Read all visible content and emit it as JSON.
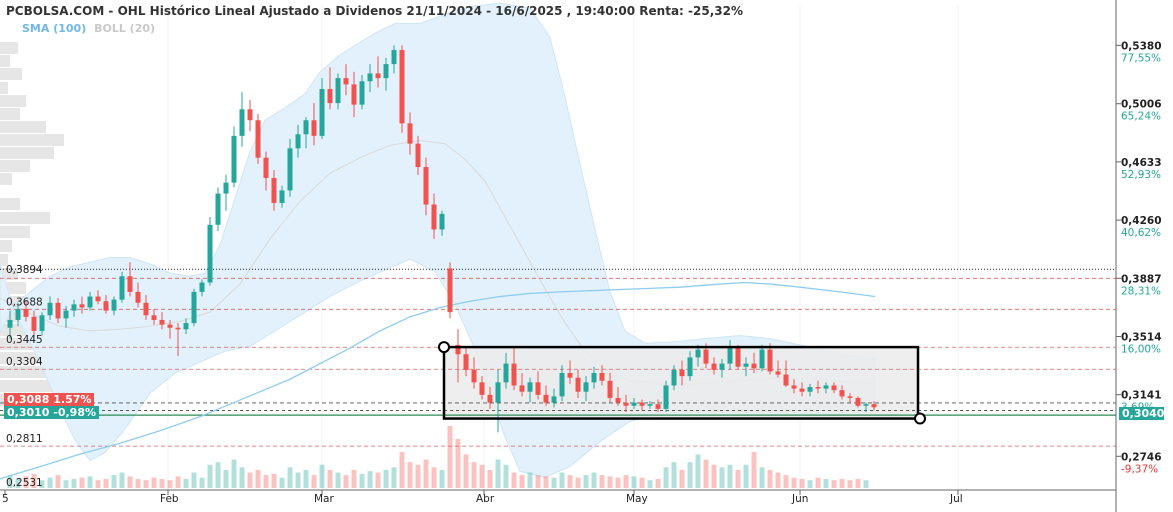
{
  "header": {
    "title": "PCBOLSA.COM - OHL Histórico Lineal Ajustado a Dividenos 21/11/2024 - 16/6/2025 , 19:40:00 Renta: -25,32%",
    "legend_sma": "SMA (100)",
    "legend_boll": "BOLL (20)"
  },
  "colors": {
    "up": "#26a69a",
    "down": "#ef5350",
    "sma": "#8fcdf0",
    "bands": "#e2f1fb",
    "box_fill": "#ebebeb"
  },
  "price_tags": {
    "red": "0,3088  1.57%",
    "green": "0,3010  -0,98%"
  },
  "right_tag": "0,3040",
  "chart_data": {
    "type": "candlestick",
    "x_tick_labels": [
      "5",
      "Feb",
      "Mar",
      "Abr",
      "May",
      "Jun",
      "Jul"
    ],
    "right_axis": [
      {
        "price": "0,5380",
        "pct": "77,55%"
      },
      {
        "price": "0,5006",
        "pct": "65,24%"
      },
      {
        "price": "0,4633",
        "pct": "52,93%"
      },
      {
        "price": "0,4260",
        "pct": "40,62%"
      },
      {
        "price": "0,3887",
        "pct": "28,31%"
      },
      {
        "price": "0,3514",
        "pct": "16,00%"
      },
      {
        "price": "0,3141",
        "pct": "3,69%"
      },
      {
        "price": "0,2746",
        "pct": "-9,37%"
      }
    ],
    "left_level_labels": [
      "0,3894",
      "0,3688",
      "0,3445",
      "0,3304",
      "0,2811",
      "0,2531"
    ],
    "ylim": [
      0.253,
      0.544
    ],
    "black_dotted_level": 0.3945,
    "red_dashed_levels": [
      0.3887,
      0.3688,
      0.3445,
      0.3304,
      0.2811
    ],
    "candles": [
      [
        0.357,
        0.368,
        0.35,
        0.362
      ],
      [
        0.362,
        0.373,
        0.358,
        0.369
      ],
      [
        0.369,
        0.374,
        0.361,
        0.364
      ],
      [
        0.364,
        0.368,
        0.351,
        0.355
      ],
      [
        0.355,
        0.367,
        0.352,
        0.365
      ],
      [
        0.365,
        0.377,
        0.362,
        0.373
      ],
      [
        0.373,
        0.376,
        0.36,
        0.363
      ],
      [
        0.363,
        0.371,
        0.357,
        0.368
      ],
      [
        0.368,
        0.375,
        0.364,
        0.372
      ],
      [
        0.372,
        0.377,
        0.366,
        0.37
      ],
      [
        0.37,
        0.38,
        0.368,
        0.377
      ],
      [
        0.377,
        0.381,
        0.372,
        0.374
      ],
      [
        0.374,
        0.378,
        0.366,
        0.368
      ],
      [
        0.368,
        0.377,
        0.365,
        0.375
      ],
      [
        0.375,
        0.393,
        0.373,
        0.39
      ],
      [
        0.39,
        0.399,
        0.377,
        0.38
      ],
      [
        0.38,
        0.386,
        0.37,
        0.373
      ],
      [
        0.373,
        0.378,
        0.362,
        0.365
      ],
      [
        0.365,
        0.369,
        0.359,
        0.362
      ],
      [
        0.362,
        0.367,
        0.356,
        0.359
      ],
      [
        0.359,
        0.362,
        0.35,
        0.357
      ],
      [
        0.357,
        0.36,
        0.339,
        0.356
      ],
      [
        0.356,
        0.363,
        0.353,
        0.36
      ],
      [
        0.36,
        0.382,
        0.358,
        0.38
      ],
      [
        0.38,
        0.388,
        0.377,
        0.386
      ],
      [
        0.386,
        0.428,
        0.384,
        0.423
      ],
      [
        0.423,
        0.447,
        0.419,
        0.443
      ],
      [
        0.443,
        0.455,
        0.432,
        0.45
      ],
      [
        0.45,
        0.486,
        0.447,
        0.48
      ],
      [
        0.48,
        0.508,
        0.473,
        0.497
      ],
      [
        0.497,
        0.503,
        0.483,
        0.49
      ],
      [
        0.49,
        0.494,
        0.462,
        0.466
      ],
      [
        0.466,
        0.47,
        0.445,
        0.453
      ],
      [
        0.453,
        0.458,
        0.432,
        0.437
      ],
      [
        0.437,
        0.448,
        0.434,
        0.445
      ],
      [
        0.445,
        0.478,
        0.441,
        0.472
      ],
      [
        0.472,
        0.487,
        0.466,
        0.481
      ],
      [
        0.481,
        0.492,
        0.472,
        0.49
      ],
      [
        0.49,
        0.501,
        0.474,
        0.48
      ],
      [
        0.48,
        0.517,
        0.478,
        0.51
      ],
      [
        0.51,
        0.524,
        0.497,
        0.501
      ],
      [
        0.501,
        0.52,
        0.497,
        0.517
      ],
      [
        0.517,
        0.526,
        0.506,
        0.513
      ],
      [
        0.513,
        0.521,
        0.492,
        0.5
      ],
      [
        0.5,
        0.519,
        0.497,
        0.515
      ],
      [
        0.515,
        0.526,
        0.508,
        0.52
      ],
      [
        0.52,
        0.531,
        0.511,
        0.517
      ],
      [
        0.517,
        0.53,
        0.509,
        0.526
      ],
      [
        0.526,
        0.538,
        0.52,
        0.535
      ],
      [
        0.535,
        0.538,
        0.482,
        0.488
      ],
      [
        0.488,
        0.495,
        0.468,
        0.475
      ],
      [
        0.475,
        0.48,
        0.455,
        0.46
      ],
      [
        0.46,
        0.466,
        0.429,
        0.436
      ],
      [
        0.436,
        0.443,
        0.414,
        0.42
      ],
      [
        0.42,
        0.432,
        0.416,
        0.43
      ],
      [
        0.395,
        0.399,
        0.363,
        0.367
      ],
      [
        0.346,
        0.356,
        0.322,
        0.34
      ],
      [
        0.34,
        0.345,
        0.326,
        0.33
      ],
      [
        0.33,
        0.338,
        0.318,
        0.322
      ],
      [
        0.322,
        0.326,
        0.311,
        0.314
      ],
      [
        0.314,
        0.319,
        0.305,
        0.309
      ],
      [
        0.309,
        0.33,
        0.29,
        0.322
      ],
      [
        0.322,
        0.341,
        0.318,
        0.334
      ],
      [
        0.334,
        0.345,
        0.317,
        0.32
      ],
      [
        0.32,
        0.328,
        0.313,
        0.316
      ],
      [
        0.316,
        0.325,
        0.309,
        0.322
      ],
      [
        0.322,
        0.329,
        0.311,
        0.314
      ],
      [
        0.314,
        0.32,
        0.307,
        0.309
      ],
      [
        0.309,
        0.318,
        0.306,
        0.313
      ],
      [
        0.313,
        0.333,
        0.31,
        0.328
      ],
      [
        0.328,
        0.336,
        0.321,
        0.325
      ],
      [
        0.325,
        0.33,
        0.312,
        0.316
      ],
      [
        0.316,
        0.326,
        0.31,
        0.322
      ],
      [
        0.322,
        0.332,
        0.318,
        0.328
      ],
      [
        0.328,
        0.333,
        0.32,
        0.323
      ],
      [
        0.323,
        0.328,
        0.309,
        0.312
      ],
      [
        0.312,
        0.319,
        0.307,
        0.309
      ],
      [
        0.309,
        0.314,
        0.303,
        0.307
      ],
      [
        0.307,
        0.312,
        0.305,
        0.309
      ],
      [
        0.309,
        0.311,
        0.304,
        0.307
      ],
      [
        0.307,
        0.31,
        0.305,
        0.308
      ],
      [
        0.308,
        0.311,
        0.303,
        0.305
      ],
      [
        0.305,
        0.323,
        0.303,
        0.32
      ],
      [
        0.32,
        0.333,
        0.317,
        0.33
      ],
      [
        0.33,
        0.336,
        0.32,
        0.326
      ],
      [
        0.326,
        0.342,
        0.323,
        0.338
      ],
      [
        0.338,
        0.346,
        0.332,
        0.343
      ],
      [
        0.343,
        0.347,
        0.331,
        0.334
      ],
      [
        0.334,
        0.338,
        0.327,
        0.33
      ],
      [
        0.33,
        0.337,
        0.325,
        0.334
      ],
      [
        0.334,
        0.349,
        0.33,
        0.345
      ],
      [
        0.345,
        0.346,
        0.33,
        0.332
      ],
      [
        0.332,
        0.338,
        0.326,
        0.334
      ],
      [
        0.334,
        0.341,
        0.328,
        0.331
      ],
      [
        0.331,
        0.346,
        0.329,
        0.343
      ],
      [
        0.343,
        0.347,
        0.327,
        0.329
      ],
      [
        0.329,
        0.336,
        0.325,
        0.327
      ],
      [
        0.327,
        0.336,
        0.319,
        0.32
      ],
      [
        0.32,
        0.324,
        0.315,
        0.318
      ],
      [
        0.318,
        0.322,
        0.313,
        0.316
      ],
      [
        0.316,
        0.321,
        0.313,
        0.319
      ],
      [
        0.319,
        0.323,
        0.315,
        0.318
      ],
      [
        0.318,
        0.322,
        0.315,
        0.32
      ],
      [
        0.32,
        0.322,
        0.315,
        0.317
      ],
      [
        0.317,
        0.32,
        0.311,
        0.313
      ],
      [
        0.313,
        0.315,
        0.309,
        0.312
      ],
      [
        0.312,
        0.313,
        0.306,
        0.307
      ],
      [
        0.307,
        0.309,
        0.303,
        0.308
      ],
      [
        0.308,
        0.31,
        0.304,
        0.306
      ]
    ],
    "volumes": [
      0.5,
      0.35,
      0.45,
      0.55,
      0.3,
      0.4,
      0.5,
      0.3,
      0.35,
      0.4,
      0.45,
      0.3,
      0.35,
      0.5,
      0.6,
      0.45,
      0.35,
      0.3,
      0.4,
      0.35,
      0.3,
      0.45,
      0.35,
      0.6,
      0.4,
      0.9,
      1.0,
      0.7,
      1.1,
      0.8,
      0.6,
      0.7,
      0.5,
      0.55,
      0.4,
      0.8,
      0.6,
      0.7,
      0.5,
      0.9,
      0.7,
      0.6,
      0.5,
      0.7,
      0.55,
      0.65,
      0.6,
      0.7,
      0.8,
      1.4,
      1.0,
      0.9,
      1.1,
      0.8,
      0.7,
      2.4,
      1.9,
      1.3,
      1.0,
      0.9,
      0.7,
      1.1,
      0.9,
      0.6,
      0.5,
      0.6,
      0.5,
      0.45,
      0.4,
      0.6,
      0.5,
      0.4,
      0.5,
      0.6,
      0.5,
      0.45,
      0.4,
      0.5,
      0.45,
      0.4,
      0.3,
      0.35,
      0.8,
      1.0,
      0.7,
      1.0,
      1.3,
      1.1,
      0.9,
      0.8,
      0.9,
      0.7,
      0.9,
      1.4,
      0.8,
      0.7,
      0.6,
      0.5,
      0.4,
      0.35,
      0.3,
      0.4,
      0.35,
      0.3,
      0.35,
      0.3,
      0.35,
      0.3
    ],
    "sma100": [
      [
        -1,
        0.26
      ],
      [
        40,
        0.268
      ],
      [
        80,
        0.276
      ],
      [
        120,
        0.283
      ],
      [
        160,
        0.291
      ],
      [
        200,
        0.3
      ],
      [
        230,
        0.308
      ],
      [
        260,
        0.316
      ],
      [
        290,
        0.324
      ],
      [
        320,
        0.334
      ],
      [
        350,
        0.344
      ],
      [
        380,
        0.355
      ],
      [
        410,
        0.364
      ],
      [
        440,
        0.37
      ],
      [
        470,
        0.374
      ],
      [
        500,
        0.377
      ],
      [
        530,
        0.379
      ],
      [
        560,
        0.38
      ],
      [
        600,
        0.381
      ],
      [
        640,
        0.382
      ],
      [
        680,
        0.383
      ],
      [
        720,
        0.385
      ],
      [
        745,
        0.386
      ],
      [
        770,
        0.385
      ],
      [
        800,
        0.383
      ],
      [
        840,
        0.38
      ],
      [
        875,
        0.377
      ]
    ],
    "boll_upper": [
      [
        0,
        0.354
      ],
      [
        15,
        0.372
      ],
      [
        30,
        0.38
      ],
      [
        50,
        0.39
      ],
      [
        70,
        0.396
      ],
      [
        90,
        0.399
      ],
      [
        110,
        0.402
      ],
      [
        130,
        0.402
      ],
      [
        150,
        0.398
      ],
      [
        170,
        0.392
      ],
      [
        190,
        0.39
      ],
      [
        205,
        0.392
      ],
      [
        220,
        0.41
      ],
      [
        235,
        0.44
      ],
      [
        250,
        0.47
      ],
      [
        265,
        0.49
      ],
      [
        285,
        0.498
      ],
      [
        305,
        0.507
      ],
      [
        320,
        0.521
      ],
      [
        340,
        0.532
      ],
      [
        360,
        0.54
      ],
      [
        375,
        0.546
      ],
      [
        395,
        0.552
      ],
      [
        420,
        0.552
      ],
      [
        445,
        0.558
      ],
      [
        470,
        0.563
      ],
      [
        500,
        0.565
      ],
      [
        530,
        0.562
      ],
      [
        550,
        0.543
      ],
      [
        565,
        0.505
      ],
      [
        580,
        0.462
      ],
      [
        595,
        0.42
      ],
      [
        610,
        0.38
      ],
      [
        625,
        0.355
      ],
      [
        645,
        0.347
      ],
      [
        675,
        0.348
      ],
      [
        705,
        0.35
      ],
      [
        740,
        0.352
      ],
      [
        770,
        0.35
      ],
      [
        800,
        0.346
      ],
      [
        830,
        0.342
      ],
      [
        860,
        0.338
      ],
      [
        875,
        0.337
      ]
    ],
    "boll_lower": [
      [
        0,
        0.398
      ],
      [
        15,
        0.366
      ],
      [
        30,
        0.348
      ],
      [
        45,
        0.327
      ],
      [
        60,
        0.305
      ],
      [
        75,
        0.285
      ],
      [
        90,
        0.272
      ],
      [
        105,
        0.277
      ],
      [
        125,
        0.292
      ],
      [
        150,
        0.315
      ],
      [
        175,
        0.328
      ],
      [
        200,
        0.335
      ],
      [
        225,
        0.342
      ],
      [
        250,
        0.345
      ],
      [
        275,
        0.355
      ],
      [
        300,
        0.365
      ],
      [
        330,
        0.377
      ],
      [
        360,
        0.387
      ],
      [
        385,
        0.394
      ],
      [
        410,
        0.401
      ],
      [
        435,
        0.393
      ],
      [
        455,
        0.372
      ],
      [
        475,
        0.343
      ],
      [
        490,
        0.315
      ],
      [
        505,
        0.287
      ],
      [
        520,
        0.265
      ],
      [
        545,
        0.261
      ],
      [
        570,
        0.268
      ],
      [
        600,
        0.284
      ],
      [
        630,
        0.297
      ],
      [
        660,
        0.302
      ],
      [
        700,
        0.303
      ],
      [
        740,
        0.303
      ],
      [
        780,
        0.303
      ],
      [
        820,
        0.302
      ],
      [
        850,
        0.301
      ],
      [
        875,
        0.301
      ]
    ],
    "boll_mid": [
      [
        0,
        0.376
      ],
      [
        30,
        0.366
      ],
      [
        60,
        0.358
      ],
      [
        90,
        0.355
      ],
      [
        120,
        0.356
      ],
      [
        150,
        0.358
      ],
      [
        180,
        0.361
      ],
      [
        210,
        0.367
      ],
      [
        240,
        0.385
      ],
      [
        270,
        0.414
      ],
      [
        300,
        0.438
      ],
      [
        330,
        0.456
      ],
      [
        360,
        0.466
      ],
      [
        390,
        0.474
      ],
      [
        420,
        0.477
      ],
      [
        445,
        0.475
      ],
      [
        465,
        0.465
      ],
      [
        485,
        0.451
      ],
      [
        505,
        0.428
      ],
      [
        525,
        0.405
      ],
      [
        545,
        0.382
      ],
      [
        565,
        0.36
      ],
      [
        585,
        0.342
      ],
      [
        605,
        0.33
      ],
      [
        630,
        0.323
      ],
      [
        660,
        0.321
      ],
      [
        700,
        0.321
      ],
      [
        740,
        0.323
      ],
      [
        780,
        0.325
      ],
      [
        820,
        0.324
      ],
      [
        850,
        0.322
      ],
      [
        875,
        0.321
      ]
    ]
  }
}
